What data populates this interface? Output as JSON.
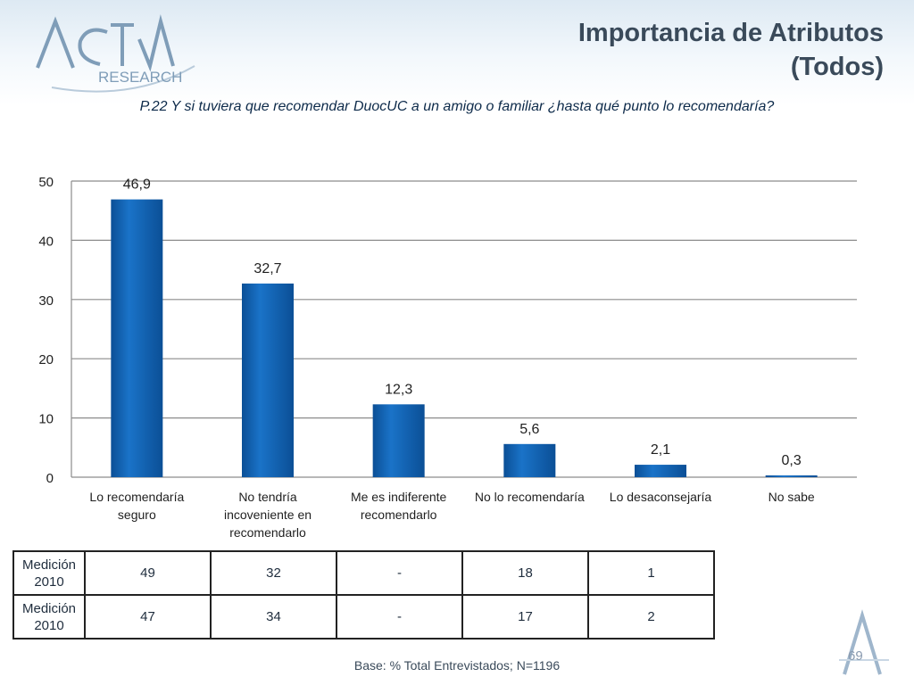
{
  "header": {
    "logo_text_top": "ACTIVA",
    "logo_text_bottom": "RESEARCH",
    "title_line1": "Importancia de Atributos",
    "title_line2": "(Todos)"
  },
  "question": "P.22 Y si tuviera que recomendar DuocUC a un amigo o familiar  ¿hasta qué punto lo recomendaría?",
  "colors": {
    "bar": "#1a73c8",
    "bar_dark": "#0b4f96",
    "grid": "#8c8c8c",
    "title": "#3a4a5a"
  },
  "chart_data": {
    "type": "bar",
    "categories": [
      "Lo recomendaría seguro",
      "No tendría incoveniente en recomendarlo",
      "Me es indiferente recomendarlo",
      "No lo recomendaría",
      "Lo desaconsejaría",
      "No sabe"
    ],
    "category_lines": [
      [
        "Lo recomendaría",
        "seguro"
      ],
      [
        "No tendría",
        "incoveniente en",
        "recomendarlo"
      ],
      [
        "Me es indiferente",
        "recomendarlo"
      ],
      [
        "No lo recomendaría"
      ],
      [
        "Lo desaconsejaría"
      ],
      [
        "No sabe"
      ]
    ],
    "values": [
      46.9,
      32.7,
      12.3,
      5.6,
      2.1,
      0.3
    ],
    "value_labels": [
      "46,9",
      "32,7",
      "12,3",
      "5,6",
      "2,1",
      "0,3"
    ],
    "title": "",
    "xlabel": "",
    "ylabel": "",
    "ylim": [
      0,
      50
    ],
    "yticks": [
      0,
      10,
      20,
      30,
      40,
      50
    ],
    "grid": true,
    "legend": "none"
  },
  "table": {
    "rows": [
      {
        "label_line1": "Medición",
        "label_line2": "2010",
        "cells": [
          "49",
          "32",
          "-",
          "18",
          "1"
        ]
      },
      {
        "label_line1": "Medición",
        "label_line2": "2010",
        "cells": [
          "47",
          "34",
          "-",
          "17",
          "2"
        ]
      }
    ]
  },
  "footer": {
    "base_text": "Base: % Total Entrevistados; N=1196",
    "page_number": "69"
  }
}
